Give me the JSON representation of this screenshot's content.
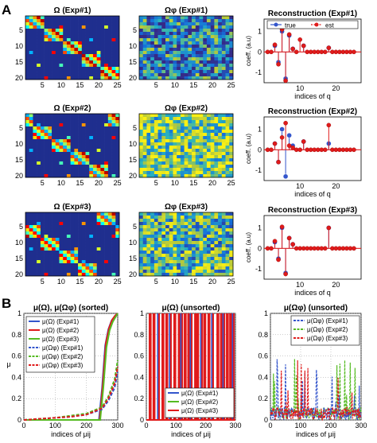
{
  "panel_labels": [
    "A",
    "B"
  ],
  "colors": {
    "true": "#3355cc",
    "est": "#e01b1b",
    "exp1": "#3355cc",
    "exp2": "#55bb22",
    "exp3": "#e01b1b",
    "stem_axis": "#000000"
  },
  "chart_data": [
    {
      "type": "heatmap",
      "title": "Ω (Exp#1)",
      "x_ticks": [
        "5",
        "10",
        "15",
        "20",
        "25"
      ],
      "y_ticks": [
        "5",
        "10",
        "15",
        "20"
      ],
      "rows": 20,
      "cols": 25,
      "pattern": "banded",
      "shift": 0,
      "palette": "parula",
      "bg": "#1f2e8e"
    },
    {
      "type": "heatmap",
      "title": "Ωφ (Exp#1)",
      "x_ticks": [
        "5",
        "10",
        "15",
        "20",
        "25"
      ],
      "y_ticks": [
        "5",
        "10",
        "15",
        "20"
      ],
      "rows": 20,
      "cols": 25,
      "pattern": "random",
      "mean": 0.35,
      "seed": 7,
      "palette": "parula"
    },
    {
      "type": "stem",
      "title": "Reconstruction (Exp#1)",
      "xlabel": "indices of q",
      "ylabel": "coeff. (a.u)",
      "x_ticks": [
        "10",
        "20"
      ],
      "y_ticks": [
        "-1",
        "0",
        "1"
      ],
      "xlim": [
        0,
        27
      ],
      "ylim": [
        -1.5,
        1.6
      ],
      "legend": [
        "true",
        "est"
      ],
      "legend_position": "top",
      "series": [
        {
          "name": "true",
          "x": [
            3,
            4,
            5,
            6,
            7,
            8,
            11,
            18
          ],
          "y": [
            0.3,
            -0.5,
            1.0,
            -1.3,
            0.8,
            0.15,
            0.3,
            0.2
          ]
        },
        {
          "name": "est",
          "x": [
            1,
            2,
            3,
            4,
            5,
            6,
            7,
            8,
            9,
            10,
            11,
            12,
            13,
            14,
            15,
            16,
            17,
            18,
            19,
            20,
            21,
            22,
            23,
            24,
            25
          ],
          "y": [
            0,
            0,
            0.35,
            -0.6,
            1.1,
            -1.4,
            0.85,
            0.15,
            0,
            0.6,
            0.3,
            0,
            0,
            0,
            0,
            0,
            0,
            0.2,
            0,
            0,
            0,
            0,
            0,
            0,
            0
          ]
        }
      ]
    },
    {
      "type": "heatmap",
      "title": "Ω (Exp#2)",
      "x_ticks": [
        "5",
        "10",
        "15",
        "20",
        "25"
      ],
      "y_ticks": [
        "5",
        "10",
        "15",
        "20"
      ],
      "rows": 20,
      "cols": 25,
      "pattern": "banded",
      "shift": 3,
      "palette": "parula",
      "bg": "#1f2e8e"
    },
    {
      "type": "heatmap",
      "title": "Ωφ (Exp#2)",
      "x_ticks": [
        "5",
        "10",
        "15",
        "20",
        "25"
      ],
      "y_ticks": [
        "5",
        "10",
        "15",
        "20"
      ],
      "rows": 20,
      "cols": 25,
      "pattern": "random",
      "mean": 0.7,
      "seed": 19,
      "palette": "parula"
    },
    {
      "type": "stem",
      "title": "Reconstruction (Exp#2)",
      "xlabel": "indices of q",
      "ylabel": "coeff. (a.u)",
      "x_ticks": [
        "10",
        "20"
      ],
      "y_ticks": [
        "-1",
        "0",
        "1"
      ],
      "xlim": [
        0,
        27
      ],
      "ylim": [
        -1.5,
        1.6
      ],
      "series": [
        {
          "name": "true",
          "x": [
            3,
            4,
            5,
            6,
            7,
            8,
            11,
            18
          ],
          "y": [
            0.3,
            -0.6,
            1.0,
            -1.3,
            0.7,
            0.2,
            0.4,
            0.3
          ]
        },
        {
          "name": "est",
          "x": [
            1,
            2,
            3,
            4,
            5,
            6,
            7,
            8,
            9,
            10,
            11,
            12,
            13,
            14,
            15,
            16,
            17,
            18,
            19,
            20,
            21,
            22,
            23,
            24,
            25
          ],
          "y": [
            0,
            0,
            0.3,
            -0.6,
            0.6,
            1.3,
            0.2,
            0.1,
            0,
            0,
            0.4,
            0,
            0,
            0,
            0,
            0,
            0,
            1.2,
            0,
            0,
            0,
            0,
            0,
            0,
            0
          ]
        }
      ]
    },
    {
      "type": "heatmap",
      "title": "Ω (Exp#3)",
      "x_ticks": [
        "5",
        "10",
        "15",
        "20",
        "25"
      ],
      "y_ticks": [
        "5",
        "10",
        "15",
        "20"
      ],
      "rows": 20,
      "cols": 25,
      "pattern": "banded",
      "shift": 6,
      "palette": "parula",
      "bg": "#1f2e8e"
    },
    {
      "type": "heatmap",
      "title": "Ωφ (Exp#3)",
      "x_ticks": [
        "5",
        "10",
        "15",
        "20",
        "25"
      ],
      "y_ticks": [
        "5",
        "10",
        "15",
        "20"
      ],
      "rows": 20,
      "cols": 25,
      "pattern": "random",
      "mean": 0.55,
      "seed": 31,
      "palette": "parula"
    },
    {
      "type": "stem",
      "title": "Reconstruction (Exp#3)",
      "xlabel": "indices of q",
      "ylabel": "coeff. (a.u)",
      "x_ticks": [
        "10",
        "20"
      ],
      "y_ticks": [
        "-1",
        "0",
        "1"
      ],
      "xlim": [
        0,
        27
      ],
      "ylim": [
        -1.5,
        1.6
      ],
      "series": [
        {
          "name": "true",
          "x": [
            3,
            4,
            5,
            6,
            7,
            8,
            18
          ],
          "y": [
            0.3,
            -0.5,
            1.0,
            -1.2,
            0.5,
            0.2,
            1.0
          ]
        },
        {
          "name": "est",
          "x": [
            1,
            2,
            3,
            4,
            5,
            6,
            7,
            8,
            9,
            10,
            11,
            12,
            13,
            14,
            15,
            16,
            17,
            18,
            19,
            20,
            21,
            22,
            23,
            24,
            25
          ],
          "y": [
            0,
            0,
            0.35,
            -0.55,
            1.05,
            -1.25,
            0.5,
            0.2,
            0,
            0,
            0,
            0,
            0,
            0,
            0,
            0,
            0,
            1.0,
            0,
            0,
            0,
            0,
            0,
            0,
            0
          ]
        }
      ]
    },
    {
      "type": "line",
      "title": "μ(Ω), μ(Ωφ) (sorted)",
      "xlabel": "indices of μij",
      "ylabel": "μ",
      "x_ticks": [
        "0",
        "100",
        "200",
        "300"
      ],
      "y_ticks": [
        "0",
        "0.2",
        "0.4",
        "0.6",
        "0.8",
        "1"
      ],
      "xlim": [
        0,
        300
      ],
      "ylim": [
        0,
        1
      ],
      "grid": true,
      "legend": [
        "μ(Ω) (Exp#1)",
        "μ(Ω) (Exp#2)",
        "μ(Ω) (Exp#3)",
        "μ(Ωφ) (Exp#1)",
        "μ(Ωφ) (Exp#2)",
        "μ(Ωφ) (Exp#3)"
      ],
      "legend_position": "left",
      "series": [
        {
          "name": "μ(Ω) (Exp#1)",
          "style": "solid",
          "color": "exp1",
          "x": [
            0,
            240,
            250,
            260,
            270,
            280,
            290,
            300
          ],
          "y": [
            0,
            0,
            0.3,
            0.7,
            0.85,
            0.93,
            0.97,
            1
          ]
        },
        {
          "name": "μ(Ω) (Exp#2)",
          "style": "solid",
          "color": "exp3",
          "x": [
            0,
            242,
            252,
            262,
            272,
            282,
            292,
            300
          ],
          "y": [
            0,
            0,
            0.32,
            0.72,
            0.86,
            0.94,
            0.98,
            1
          ]
        },
        {
          "name": "μ(Ω) (Exp#3)",
          "style": "solid",
          "color": "exp2",
          "x": [
            0,
            244,
            254,
            264,
            274,
            284,
            294,
            300
          ],
          "y": [
            0,
            0,
            0.3,
            0.68,
            0.84,
            0.92,
            0.97,
            1
          ]
        },
        {
          "name": "μ(Ωφ) (Exp#1)",
          "style": "dashed",
          "color": "exp1",
          "x": [
            0,
            50,
            100,
            150,
            200,
            250,
            270,
            290,
            300
          ],
          "y": [
            0,
            0.01,
            0.02,
            0.03,
            0.05,
            0.1,
            0.18,
            0.3,
            0.45
          ]
        },
        {
          "name": "μ(Ωφ) (Exp#2)",
          "style": "dashed",
          "color": "exp2",
          "x": [
            0,
            50,
            100,
            150,
            200,
            250,
            270,
            290,
            300
          ],
          "y": [
            0,
            0.01,
            0.02,
            0.04,
            0.06,
            0.12,
            0.22,
            0.38,
            0.56
          ]
        },
        {
          "name": "μ(Ωφ) (Exp#3)",
          "style": "dashed",
          "color": "exp3",
          "x": [
            0,
            50,
            100,
            150,
            200,
            250,
            270,
            290,
            300
          ],
          "y": [
            0,
            0.01,
            0.02,
            0.03,
            0.05,
            0.11,
            0.2,
            0.34,
            0.5
          ]
        }
      ]
    },
    {
      "type": "line",
      "title": "μ(Ω) (unsorted)",
      "xlabel": "indices of μij",
      "ylabel": "",
      "x_ticks": [
        "0",
        "100",
        "200",
        "300"
      ],
      "y_ticks": [
        "0",
        "0.2",
        "0.4",
        "0.6",
        "0.8",
        "1"
      ],
      "xlim": [
        0,
        300
      ],
      "ylim": [
        0,
        1
      ],
      "grid": true,
      "legend": [
        "μ(Ω) (Exp#1)",
        "μ(Ω) (Exp#2)",
        "μ(Ω) (Exp#3)"
      ],
      "legend_position": "bottom-right",
      "pattern": "spikes",
      "spike_positions": [
        12,
        25,
        40,
        55,
        68,
        80,
        95,
        110,
        118,
        130,
        142,
        150,
        165,
        172,
        185,
        196,
        210,
        222,
        240,
        252,
        260,
        272,
        283,
        292
      ],
      "spike_height": 1.0
    },
    {
      "type": "line",
      "title": "μ(Ωφ) (unsorted)",
      "xlabel": "indices of μij",
      "ylabel": "",
      "x_ticks": [
        "0",
        "100",
        "200",
        "300"
      ],
      "y_ticks": [
        "0",
        "0.2",
        "0.4",
        "0.6",
        "0.8",
        "1"
      ],
      "xlim": [
        0,
        300
      ],
      "ylim": [
        0,
        1
      ],
      "grid": true,
      "legend": [
        "μ(Ωφ) (Exp#1)",
        "μ(Ωφ) (Exp#2)",
        "μ(Ωφ) (Exp#3)"
      ],
      "legend_position": "top-right",
      "pattern": "noise",
      "max_value": 0.58,
      "seed": 5
    }
  ]
}
